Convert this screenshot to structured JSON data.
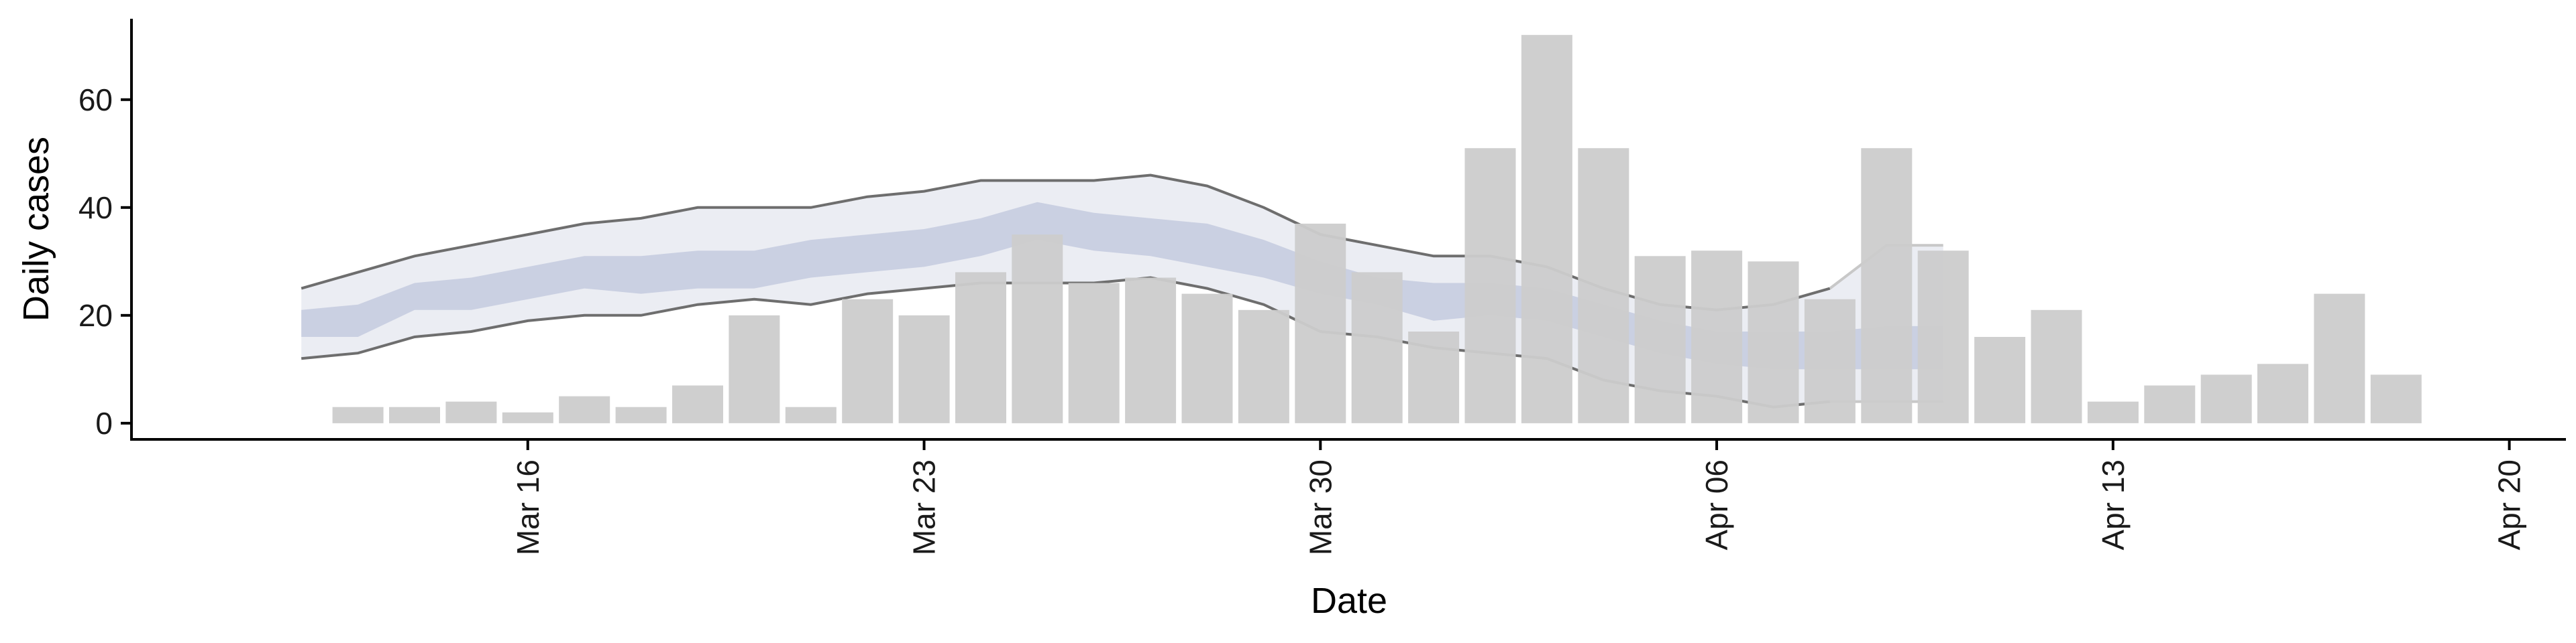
{
  "chart_data": {
    "type": "bar",
    "title": "",
    "xlabel": "Date",
    "ylabel": "Daily cases",
    "ylim": [
      -3,
      75
    ],
    "yticks": [
      0,
      20,
      40,
      60
    ],
    "xlim": [
      "2020-03-09",
      "2020-04-21"
    ],
    "xticks": [
      {
        "date": "2020-03-16",
        "label": "Mar 16"
      },
      {
        "date": "2020-03-23",
        "label": "Mar 23"
      },
      {
        "date": "2020-03-30",
        "label": "Mar 30"
      },
      {
        "date": "2020-04-06",
        "label": "Apr 06"
      },
      {
        "date": "2020-04-13",
        "label": "Apr 13"
      },
      {
        "date": "2020-04-20",
        "label": "Apr 20"
      }
    ],
    "grid": false,
    "legend": "none",
    "colors": {
      "bars": "#cccccc",
      "outer_band": "#e9ebf2",
      "inner_band": "#c6cce0",
      "band_edge": "#6e6e6e",
      "forecast_edge": "#c8c8c8"
    },
    "bars": {
      "dates": [
        "2020-03-13",
        "2020-03-14",
        "2020-03-15",
        "2020-03-16",
        "2020-03-17",
        "2020-03-18",
        "2020-03-19",
        "2020-03-20",
        "2020-03-21",
        "2020-03-22",
        "2020-03-23",
        "2020-03-24",
        "2020-03-25",
        "2020-03-26",
        "2020-03-27",
        "2020-03-28",
        "2020-03-29",
        "2020-03-30",
        "2020-03-31",
        "2020-04-01",
        "2020-04-02",
        "2020-04-03",
        "2020-04-04",
        "2020-04-05",
        "2020-04-06",
        "2020-04-07",
        "2020-04-08",
        "2020-04-09",
        "2020-04-10",
        "2020-04-11",
        "2020-04-12",
        "2020-04-13",
        "2020-04-14",
        "2020-04-15",
        "2020-04-16",
        "2020-04-17",
        "2020-04-18",
        "2020-04-19"
      ],
      "values": [
        3,
        3,
        4,
        2,
        5,
        3,
        7,
        20,
        3,
        23,
        20,
        28,
        35,
        26,
        27,
        24,
        21,
        37,
        28,
        17,
        51,
        72,
        51,
        31,
        32,
        30,
        23,
        51,
        32,
        16,
        21,
        4,
        7,
        9,
        11,
        24,
        9,
        0
      ]
    },
    "bands": {
      "dates": [
        "2020-03-12",
        "2020-03-13",
        "2020-03-14",
        "2020-03-15",
        "2020-03-16",
        "2020-03-17",
        "2020-03-18",
        "2020-03-19",
        "2020-03-20",
        "2020-03-21",
        "2020-03-22",
        "2020-03-23",
        "2020-03-24",
        "2020-03-25",
        "2020-03-26",
        "2020-03-27",
        "2020-03-28",
        "2020-03-29",
        "2020-03-30",
        "2020-03-31",
        "2020-04-01",
        "2020-04-02",
        "2020-04-03",
        "2020-04-04",
        "2020-04-05",
        "2020-04-06",
        "2020-04-07",
        "2020-04-08",
        "2020-04-09",
        "2020-04-10"
      ],
      "outer_upper": [
        25,
        28,
        31,
        33,
        35,
        37,
        38,
        40,
        40,
        40,
        42,
        43,
        45,
        45,
        45,
        46,
        44,
        40,
        35,
        33,
        31,
        31,
        29,
        25,
        22,
        21,
        22,
        25,
        33,
        33
      ],
      "outer_lower": [
        12,
        13,
        16,
        17,
        19,
        20,
        20,
        22,
        23,
        22,
        24,
        25,
        26,
        26,
        26,
        27,
        25,
        22,
        17,
        16,
        14,
        13,
        12,
        8,
        6,
        5,
        3,
        4,
        4,
        4
      ],
      "inner_upper": [
        21,
        22,
        26,
        27,
        29,
        31,
        31,
        32,
        32,
        34,
        35,
        36,
        38,
        41,
        39,
        38,
        37,
        34,
        30,
        27,
        26,
        26,
        25,
        22,
        19,
        17,
        17,
        17,
        18,
        18
      ],
      "inner_lower": [
        16,
        16,
        21,
        21,
        23,
        25,
        24,
        25,
        25,
        27,
        28,
        29,
        31,
        34,
        32,
        31,
        29,
        27,
        24,
        22,
        19,
        20,
        19,
        16,
        13,
        11,
        10,
        10,
        10,
        10
      ]
    }
  }
}
